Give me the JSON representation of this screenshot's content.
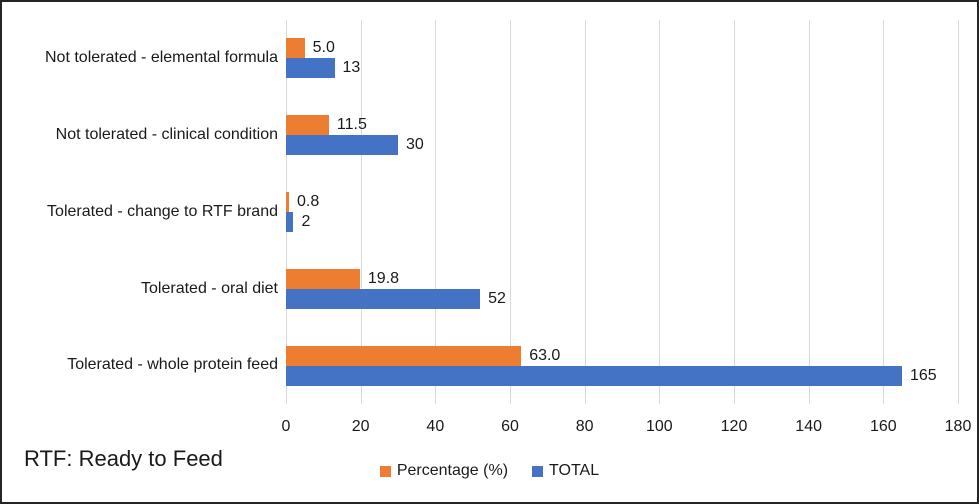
{
  "footnote": "RTF: Ready to Feed",
  "colors": {
    "percentage": "#ED7D31",
    "total": "#4472C4",
    "gridline": "#d9d9d9",
    "frame_border": "#262626"
  },
  "chart_data": {
    "type": "bar",
    "orientation": "horizontal",
    "title": "",
    "xlabel": "",
    "ylabel": "",
    "categories": [
      "Not tolerated - elemental formula",
      "Not tolerated - clinical condition",
      "Tolerated - change to RTF brand",
      "Tolerated - oral diet",
      "Tolerated - whole protein feed"
    ],
    "series": [
      {
        "name": "Percentage (%)",
        "key": "percentage",
        "color": "#ED7D31",
        "values": [
          5.0,
          11.5,
          0.8,
          19.8,
          63.0
        ],
        "labels": [
          "5.0",
          "11.5",
          "0.8",
          "19.8",
          "63.0"
        ]
      },
      {
        "name": "TOTAL",
        "key": "total",
        "color": "#4472C4",
        "values": [
          13,
          30,
          2,
          52,
          165
        ],
        "labels": [
          "13",
          "30",
          "2",
          "52",
          "165"
        ]
      }
    ],
    "xlim": [
      0,
      180
    ],
    "xticks": [
      0,
      20,
      40,
      60,
      80,
      100,
      120,
      140,
      160,
      180
    ],
    "grid": "vertical",
    "legend_position": "bottom-center"
  }
}
